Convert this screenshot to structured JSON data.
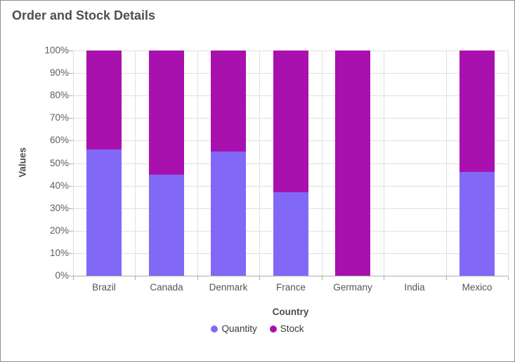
{
  "frame": {
    "border_color": "#8E8E8E",
    "background": "#FFFFFF"
  },
  "chart_data": {
    "type": "bar",
    "subtype": "stacked-100-column",
    "title": "Order and Stock Details",
    "xlabel": "Country",
    "ylabel": "Values",
    "categories": [
      "Brazil",
      "Canada",
      "Denmark",
      "France",
      "Germany",
      "India",
      "Mexico"
    ],
    "series": [
      {
        "name": "Quantity",
        "color": "#8268F7",
        "values": [
          56,
          45,
          55,
          37,
          0,
          0,
          46
        ]
      },
      {
        "name": "Stock",
        "color": "#A811AD",
        "values": [
          44,
          55,
          45,
          63,
          100,
          0,
          54
        ]
      }
    ],
    "ylim": [
      0,
      100
    ],
    "ytick_labels": [
      "0%",
      "10%",
      "20%",
      "30%",
      "40%",
      "50%",
      "60%",
      "70%",
      "80%",
      "90%",
      "100%"
    ],
    "grid": true,
    "legend_position": "bottom"
  },
  "colors": {
    "gridline": "#E0E0E0",
    "axis_line": "#ADADAD",
    "title_text": "#4F4F4F",
    "axis_label_text": "#5D5D5D",
    "axis_title_text": "#4C4C4C",
    "legend_text": "#3A3A3A"
  }
}
